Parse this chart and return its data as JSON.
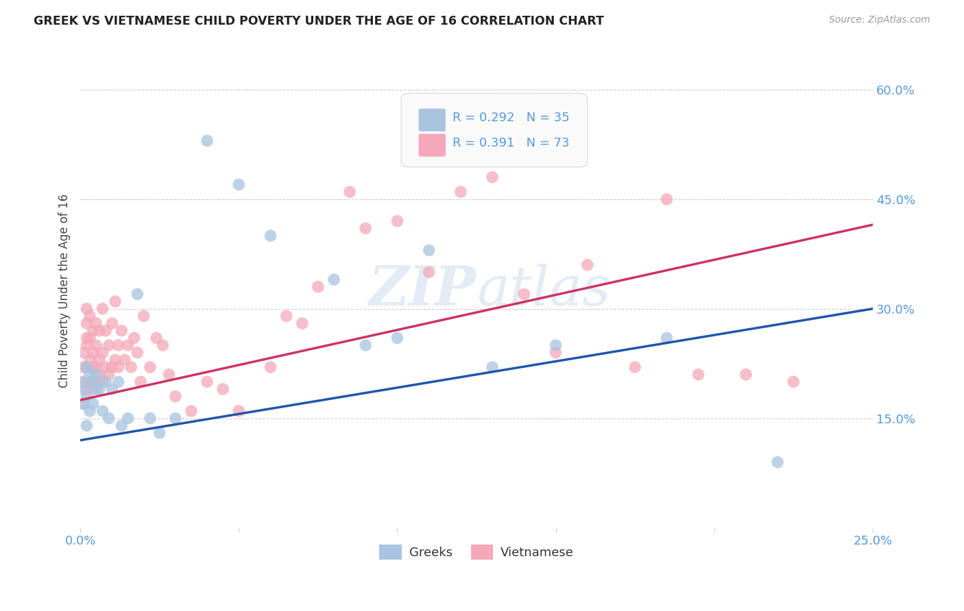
{
  "title": "GREEK VS VIETNAMESE CHILD POVERTY UNDER THE AGE OF 16 CORRELATION CHART",
  "source": "Source: ZipAtlas.com",
  "ylabel": "Child Poverty Under the Age of 16",
  "xlim": [
    0.0,
    0.25
  ],
  "ylim": [
    0.0,
    0.65
  ],
  "xticks": [
    0.0,
    0.05,
    0.1,
    0.15,
    0.2,
    0.25
  ],
  "xtick_labels": [
    "0.0%",
    "",
    "",
    "",
    "",
    "25.0%"
  ],
  "yticks_right": [
    0.15,
    0.3,
    0.45,
    0.6
  ],
  "ytick_labels_right": [
    "15.0%",
    "30.0%",
    "45.0%",
    "60.0%"
  ],
  "r_greek": 0.292,
  "n_greek": 35,
  "r_vietnamese": 0.391,
  "n_vietnamese": 73,
  "color_greek": "#A8C4E0",
  "color_vietnamese": "#F4A8B8",
  "color_line_greek": "#2255AA",
  "color_line_vietnamese": "#CC3366",
  "watermark_zip": "ZIP",
  "watermark_atlas": "atlas",
  "background_color": "#FFFFFF",
  "line_greek_x0": 0.0,
  "line_greek_y0": 0.12,
  "line_greek_x1": 0.25,
  "line_greek_y1": 0.3,
  "line_viet_x0": 0.0,
  "line_viet_y0": 0.175,
  "line_viet_x1": 0.25,
  "line_viet_y1": 0.415,
  "greek_x": [
    0.001,
    0.001,
    0.001,
    0.002,
    0.002,
    0.002,
    0.003,
    0.003,
    0.004,
    0.004,
    0.005,
    0.005,
    0.006,
    0.007,
    0.008,
    0.009,
    0.01,
    0.012,
    0.013,
    0.015,
    0.018,
    0.022,
    0.025,
    0.03,
    0.04,
    0.05,
    0.06,
    0.08,
    0.09,
    0.1,
    0.11,
    0.13,
    0.15,
    0.185,
    0.22
  ],
  "greek_y": [
    0.2,
    0.19,
    0.17,
    0.22,
    0.18,
    0.14,
    0.21,
    0.16,
    0.2,
    0.17,
    0.19,
    0.21,
    0.19,
    0.16,
    0.2,
    0.15,
    0.19,
    0.2,
    0.14,
    0.15,
    0.32,
    0.15,
    0.13,
    0.15,
    0.53,
    0.47,
    0.4,
    0.34,
    0.25,
    0.26,
    0.38,
    0.22,
    0.25,
    0.26,
    0.09
  ],
  "viet_x": [
    0.001,
    0.001,
    0.001,
    0.001,
    0.002,
    0.002,
    0.002,
    0.002,
    0.002,
    0.002,
    0.003,
    0.003,
    0.003,
    0.003,
    0.004,
    0.004,
    0.004,
    0.004,
    0.005,
    0.005,
    0.005,
    0.005,
    0.006,
    0.006,
    0.006,
    0.007,
    0.007,
    0.007,
    0.008,
    0.008,
    0.009,
    0.009,
    0.01,
    0.01,
    0.011,
    0.011,
    0.012,
    0.012,
    0.013,
    0.014,
    0.015,
    0.016,
    0.017,
    0.018,
    0.019,
    0.02,
    0.022,
    0.024,
    0.026,
    0.028,
    0.03,
    0.035,
    0.04,
    0.045,
    0.05,
    0.06,
    0.065,
    0.07,
    0.075,
    0.085,
    0.09,
    0.1,
    0.11,
    0.12,
    0.13,
    0.14,
    0.15,
    0.16,
    0.175,
    0.185,
    0.195,
    0.21,
    0.225
  ],
  "viet_y": [
    0.2,
    0.22,
    0.17,
    0.24,
    0.22,
    0.26,
    0.19,
    0.28,
    0.25,
    0.3,
    0.23,
    0.26,
    0.29,
    0.2,
    0.24,
    0.22,
    0.27,
    0.19,
    0.22,
    0.25,
    0.2,
    0.28,
    0.23,
    0.27,
    0.21,
    0.24,
    0.3,
    0.2,
    0.22,
    0.27,
    0.21,
    0.25,
    0.22,
    0.28,
    0.23,
    0.31,
    0.22,
    0.25,
    0.27,
    0.23,
    0.25,
    0.22,
    0.26,
    0.24,
    0.2,
    0.29,
    0.22,
    0.26,
    0.25,
    0.21,
    0.18,
    0.16,
    0.2,
    0.19,
    0.16,
    0.22,
    0.29,
    0.28,
    0.33,
    0.46,
    0.41,
    0.42,
    0.35,
    0.46,
    0.48,
    0.32,
    0.24,
    0.36,
    0.22,
    0.45,
    0.21,
    0.21,
    0.2
  ]
}
